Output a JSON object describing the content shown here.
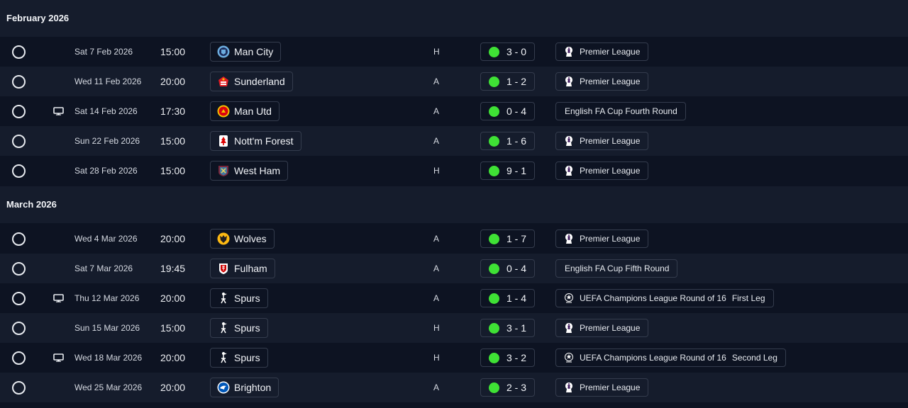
{
  "colors": {
    "background": "#0d1322",
    "row_alt": "#151c2c",
    "win_dot": "#3fe135",
    "chip_border": "#343c4d"
  },
  "months": [
    {
      "label": "February 2026",
      "fixtures": [
        {
          "date": "Sat 7 Feb 2026",
          "time": "15:00",
          "team": "Man City",
          "badge": "man-city-badge",
          "venue": "H",
          "score": "3 - 0",
          "competition": "Premier League",
          "comp_icon": "premier-league-icon",
          "tv": false
        },
        {
          "date": "Wed 11 Feb 2026",
          "time": "20:00",
          "team": "Sunderland",
          "badge": "sunderland-badge",
          "venue": "A",
          "score": "1 - 2",
          "competition": "Premier League",
          "comp_icon": "premier-league-icon",
          "tv": false
        },
        {
          "date": "Sat 14 Feb 2026",
          "time": "17:30",
          "team": "Man Utd",
          "badge": "man-utd-badge",
          "venue": "A",
          "score": "0 - 4",
          "competition": "English FA Cup Fourth Round",
          "comp_icon": "",
          "tv": true
        },
        {
          "date": "Sun 22 Feb 2026",
          "time": "15:00",
          "team": "Nott'm Forest",
          "badge": "nottm-forest-badge",
          "venue": "A",
          "score": "1 - 6",
          "competition": "Premier League",
          "comp_icon": "premier-league-icon",
          "tv": false
        },
        {
          "date": "Sat 28 Feb 2026",
          "time": "15:00",
          "team": "West Ham",
          "badge": "west-ham-badge",
          "venue": "H",
          "score": "9 - 1",
          "competition": "Premier League",
          "comp_icon": "premier-league-icon",
          "tv": false
        }
      ]
    },
    {
      "label": "March 2026",
      "fixtures": [
        {
          "date": "Wed 4 Mar 2026",
          "time": "20:00",
          "team": "Wolves",
          "badge": "wolves-badge",
          "venue": "A",
          "score": "1 - 7",
          "competition": "Premier League",
          "comp_icon": "premier-league-icon",
          "tv": false
        },
        {
          "date": "Sat 7 Mar 2026",
          "time": "19:45",
          "team": "Fulham",
          "badge": "fulham-badge",
          "venue": "A",
          "score": "0 - 4",
          "competition": "English FA Cup Fifth Round",
          "comp_icon": "",
          "tv": false
        },
        {
          "date": "Thu 12 Mar 2026",
          "time": "20:00",
          "team": "Spurs",
          "badge": "spurs-badge",
          "venue": "A",
          "score": "1 - 4",
          "competition": "UEFA Champions League Round of 16",
          "leg": "First Leg",
          "comp_icon": "champions-league-icon",
          "tv": true
        },
        {
          "date": "Sun 15 Mar 2026",
          "time": "15:00",
          "team": "Spurs",
          "badge": "spurs-badge",
          "venue": "H",
          "score": "3 - 1",
          "competition": "Premier League",
          "comp_icon": "premier-league-icon",
          "tv": false
        },
        {
          "date": "Wed 18 Mar 2026",
          "time": "20:00",
          "team": "Spurs",
          "badge": "spurs-badge",
          "venue": "H",
          "score": "3 - 2",
          "competition": "UEFA Champions League Round of 16",
          "leg": "Second Leg",
          "comp_icon": "champions-league-icon",
          "tv": true
        },
        {
          "date": "Wed 25 Mar 2026",
          "time": "20:00",
          "team": "Brighton",
          "badge": "brighton-badge",
          "venue": "A",
          "score": "2 - 3",
          "competition": "Premier League",
          "comp_icon": "premier-league-icon",
          "tv": false
        }
      ]
    }
  ]
}
